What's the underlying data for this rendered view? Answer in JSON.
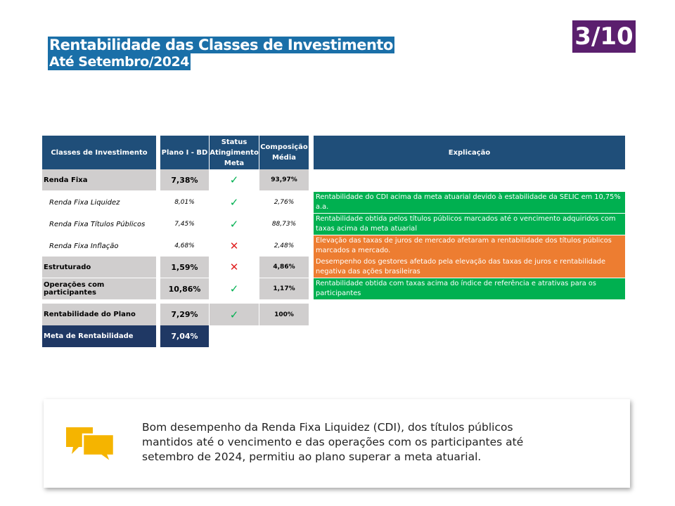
{
  "header": {
    "title_line1": "Rentabilidade das Classes de Investimento",
    "title_line2": "Até Setembro/2024",
    "page_badge": "3/10"
  },
  "table": {
    "columns": {
      "classes": "Classes de Investimento",
      "plano": "Plano I - BD",
      "status": "Status Atingimento Meta",
      "composicao": "Composição Média",
      "explicacao": "Explicação"
    },
    "rows": [
      {
        "label": "Renda Fixa",
        "plano": "7,38%",
        "status": "ok",
        "composicao": "93,97%"
      },
      {
        "label": "Renda Fixa Liquidez",
        "plano": "8,01%",
        "status": "ok",
        "composicao": "2,76%"
      },
      {
        "label": "Renda Fixa Títulos Públicos",
        "plano": "7,45%",
        "status": "ok",
        "composicao": "88,73%"
      },
      {
        "label": "Renda Fixa Inflação",
        "plano": "4,68%",
        "status": "fail",
        "composicao": "2,48%"
      },
      {
        "label": "Estruturado",
        "plano": "1,59%",
        "status": "fail",
        "composicao": "4,86%"
      },
      {
        "label": "Operações com participantes",
        "plano": "10,86%",
        "status": "ok",
        "composicao": "1,17%"
      },
      {
        "label": "Rentabilidade do Plano",
        "plano": "7,29%",
        "status": "ok",
        "composicao": "100%"
      },
      {
        "label": "Meta de Rentabilidade",
        "plano": "7,04%"
      }
    ],
    "status_symbols": {
      "ok": "✓",
      "fail": "✕"
    },
    "explanations": [
      {
        "text": "Rentabilidade do CDI acima da meta atuarial devido à estabilidade da SELIC em 10,75% a.a.",
        "color": "#00b050"
      },
      {
        "text": "Rentabilidade obtida pelos títulos públicos marcados até o vencimento adquiridos com taxas acima da meta atuarial",
        "color": "#00b050"
      },
      {
        "text": "Elevação das taxas de juros de mercado afetaram a rentabilidade dos títulos públicos marcados a mercado.",
        "color": "#ed7d31"
      },
      {
        "text": "Desempenho dos gestores afetado pela elevação das taxas de juros e rentabilidade negativa das ações brasileiras",
        "color": "#ed7d31"
      },
      {
        "text": "Rentabilidade obtida com taxas acima do índice de referência e atrativas para os participantes",
        "color": "#00b050"
      }
    ]
  },
  "summary": {
    "icon": "speech-bubbles-icon",
    "text": "Bom desempenho da Renda Fixa Liquidez (CDI), dos títulos públicos mantidos até o vencimento e das operações com os participantes até setembro de 2024, permitiu ao plano superar a meta atuarial."
  }
}
